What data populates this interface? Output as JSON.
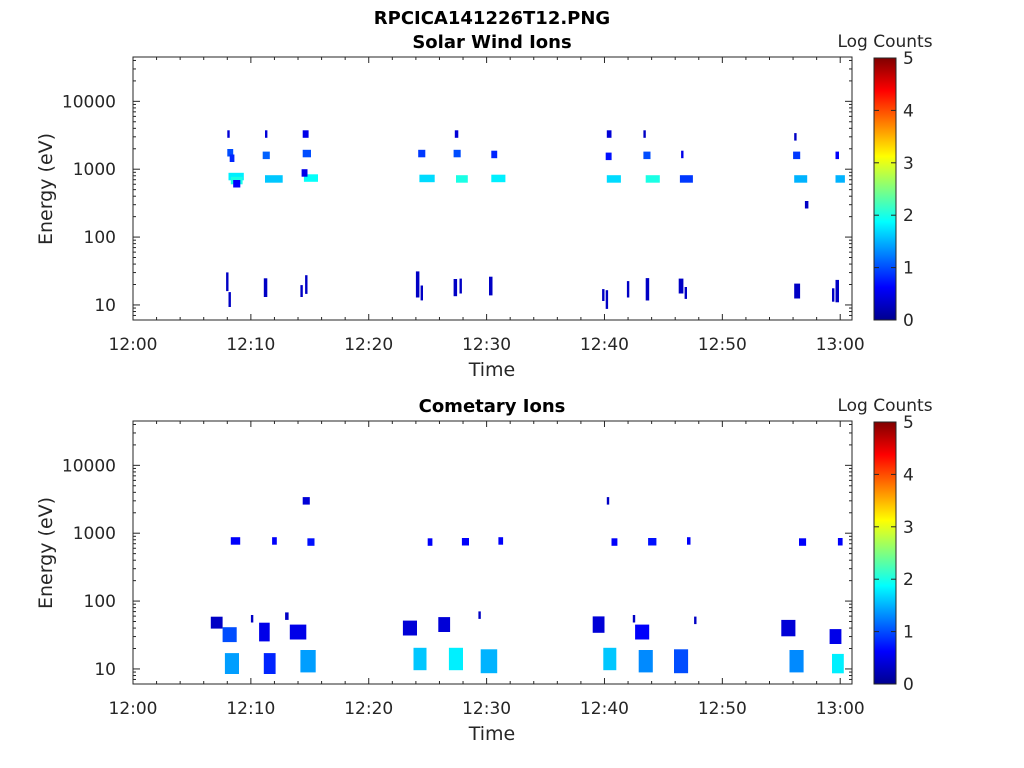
{
  "figure_title": "RPCICA141226T12.PNG",
  "colorbar_ticks": [
    "0",
    "1",
    "2",
    "3",
    "4",
    "5"
  ],
  "chart_data": [
    {
      "type": "heatmap",
      "title": "Solar Wind Ions",
      "xlabel": "Time",
      "ylabel": "Energy (eV)",
      "colorbar_label": "Log Counts",
      "colorbar_range": [
        0,
        5
      ],
      "x_ticks": [
        "12:00",
        "12:10",
        "12:20",
        "12:30",
        "12:40",
        "12:50",
        "13:00"
      ],
      "x_range_minutes": [
        0,
        61
      ],
      "y_scale": "log",
      "y_ticks": [
        "10",
        "100",
        "1000",
        "10000"
      ],
      "y_range": [
        6,
        45000
      ],
      "grid": false,
      "cells": [
        {
          "t": 8.0,
          "dt": 0.2,
          "e": 3300,
          "v": 0.4
        },
        {
          "t": 8.0,
          "dt": 0.5,
          "e": 1750,
          "v": 1.0
        },
        {
          "t": 8.2,
          "dt": 0.4,
          "e": 1450,
          "v": 0.8
        },
        {
          "t": 8.1,
          "dt": 1.3,
          "e": 780,
          "v": 1.8
        },
        {
          "t": 8.3,
          "dt": 1.0,
          "e": 680,
          "v": 2.0
        },
        {
          "t": 8.5,
          "dt": 0.6,
          "e": 610,
          "v": 0.6
        },
        {
          "t": 11.2,
          "dt": 0.2,
          "e": 3300,
          "v": 0.4
        },
        {
          "t": 11.0,
          "dt": 0.6,
          "e": 1600,
          "v": 1.1
        },
        {
          "t": 11.2,
          "dt": 1.5,
          "e": 720,
          "v": 1.6
        },
        {
          "t": 14.4,
          "dt": 0.5,
          "e": 3300,
          "v": 0.5
        },
        {
          "t": 14.4,
          "dt": 0.7,
          "e": 1700,
          "v": 1.0
        },
        {
          "t": 14.5,
          "dt": 1.2,
          "e": 740,
          "v": 1.9
        },
        {
          "t": 14.3,
          "dt": 0.5,
          "e": 880,
          "v": 0.5
        },
        {
          "t": 24.2,
          "dt": 0.6,
          "e": 1700,
          "v": 0.9
        },
        {
          "t": 24.3,
          "dt": 1.3,
          "e": 730,
          "v": 1.7
        },
        {
          "t": 27.3,
          "dt": 0.3,
          "e": 3300,
          "v": 0.4
        },
        {
          "t": 27.2,
          "dt": 0.6,
          "e": 1700,
          "v": 1.0
        },
        {
          "t": 27.4,
          "dt": 1.0,
          "e": 720,
          "v": 2.0
        },
        {
          "t": 30.4,
          "dt": 0.5,
          "e": 1650,
          "v": 0.8
        },
        {
          "t": 30.4,
          "dt": 1.2,
          "e": 730,
          "v": 1.8
        },
        {
          "t": 40.2,
          "dt": 0.4,
          "e": 3300,
          "v": 0.4
        },
        {
          "t": 40.1,
          "dt": 0.5,
          "e": 1550,
          "v": 0.7
        },
        {
          "t": 40.2,
          "dt": 1.2,
          "e": 720,
          "v": 1.7
        },
        {
          "t": 43.3,
          "dt": 0.2,
          "e": 3300,
          "v": 0.3
        },
        {
          "t": 43.3,
          "dt": 0.6,
          "e": 1600,
          "v": 1.0
        },
        {
          "t": 43.5,
          "dt": 1.2,
          "e": 720,
          "v": 2.0
        },
        {
          "t": 46.5,
          "dt": 0.2,
          "e": 1650,
          "v": 0.5
        },
        {
          "t": 46.4,
          "dt": 1.1,
          "e": 720,
          "v": 0.9
        },
        {
          "t": 56.1,
          "dt": 0.2,
          "e": 3000,
          "v": 0.3
        },
        {
          "t": 56.0,
          "dt": 0.6,
          "e": 1600,
          "v": 0.9
        },
        {
          "t": 56.1,
          "dt": 1.1,
          "e": 720,
          "v": 1.5
        },
        {
          "t": 57.0,
          "dt": 0.3,
          "e": 300,
          "v": 0.3
        },
        {
          "t": 59.6,
          "dt": 0.3,
          "e": 1600,
          "v": 0.6
        },
        {
          "t": 59.6,
          "dt": 0.8,
          "e": 720,
          "v": 1.5
        },
        {
          "t": 7.9,
          "dt": 0.2,
          "e": 22,
          "v": 0.3,
          "span": 2.5
        },
        {
          "t": 8.1,
          "dt": 0.2,
          "e": 12,
          "v": 0.3,
          "span": 2.0
        },
        {
          "t": 11.1,
          "dt": 0.3,
          "e": 18,
          "v": 0.3,
          "span": 2.5
        },
        {
          "t": 14.2,
          "dt": 0.2,
          "e": 16,
          "v": 0.3,
          "span": 1.6
        },
        {
          "t": 14.6,
          "dt": 0.2,
          "e": 20,
          "v": 0.3,
          "span": 2.5
        },
        {
          "t": 24.0,
          "dt": 0.3,
          "e": 20,
          "v": 0.3,
          "span": 3.5
        },
        {
          "t": 24.4,
          "dt": 0.2,
          "e": 15,
          "v": 0.3,
          "span": 2.0
        },
        {
          "t": 27.2,
          "dt": 0.3,
          "e": 18,
          "v": 0.3,
          "span": 2.3
        },
        {
          "t": 27.7,
          "dt": 0.2,
          "e": 19,
          "v": 0.3,
          "span": 2.0
        },
        {
          "t": 30.2,
          "dt": 0.3,
          "e": 19,
          "v": 0.3,
          "span": 2.5
        },
        {
          "t": 39.8,
          "dt": 0.2,
          "e": 14,
          "v": 0.3,
          "span": 1.6
        },
        {
          "t": 40.1,
          "dt": 0.2,
          "e": 12,
          "v": 0.3,
          "span": 2.5
        },
        {
          "t": 41.9,
          "dt": 0.2,
          "e": 17,
          "v": 0.3,
          "span": 2.2
        },
        {
          "t": 43.5,
          "dt": 0.3,
          "e": 17,
          "v": 0.3,
          "span": 3.0
        },
        {
          "t": 46.3,
          "dt": 0.4,
          "e": 19,
          "v": 0.3,
          "span": 2.0
        },
        {
          "t": 46.8,
          "dt": 0.2,
          "e": 15,
          "v": 0.3,
          "span": 1.6
        },
        {
          "t": 56.1,
          "dt": 0.5,
          "e": 16,
          "v": 0.3,
          "span": 2.0
        },
        {
          "t": 59.3,
          "dt": 0.2,
          "e": 14,
          "v": 0.3,
          "span": 1.8
        },
        {
          "t": 59.6,
          "dt": 0.3,
          "e": 16,
          "v": 0.3,
          "span": 3.0
        }
      ]
    },
    {
      "type": "heatmap",
      "title": "Cometary Ions",
      "xlabel": "Time",
      "ylabel": "Energy (eV)",
      "colorbar_label": "Log Counts",
      "colorbar_range": [
        0,
        5
      ],
      "x_ticks": [
        "12:00",
        "12:10",
        "12:20",
        "12:30",
        "12:40",
        "12:50",
        "13:00"
      ],
      "x_range_minutes": [
        0,
        61
      ],
      "y_scale": "log",
      "y_ticks": [
        "10",
        "100",
        "1000",
        "10000"
      ],
      "y_range": [
        6,
        45000
      ],
      "grid": false,
      "cells": [
        {
          "t": 14.4,
          "dt": 0.6,
          "e": 3000,
          "v": 0.4
        },
        {
          "t": 40.2,
          "dt": 0.2,
          "e": 3000,
          "v": 0.3
        },
        {
          "t": 8.3,
          "dt": 0.8,
          "e": 770,
          "v": 0.6
        },
        {
          "t": 11.8,
          "dt": 0.4,
          "e": 770,
          "v": 0.6
        },
        {
          "t": 14.8,
          "dt": 0.6,
          "e": 740,
          "v": 0.7
        },
        {
          "t": 25.0,
          "dt": 0.4,
          "e": 740,
          "v": 0.6
        },
        {
          "t": 27.9,
          "dt": 0.6,
          "e": 750,
          "v": 0.6
        },
        {
          "t": 31.0,
          "dt": 0.4,
          "e": 770,
          "v": 0.6
        },
        {
          "t": 40.6,
          "dt": 0.5,
          "e": 740,
          "v": 0.6
        },
        {
          "t": 43.7,
          "dt": 0.7,
          "e": 750,
          "v": 0.7
        },
        {
          "t": 47.0,
          "dt": 0.3,
          "e": 770,
          "v": 0.6
        },
        {
          "t": 56.5,
          "dt": 0.6,
          "e": 740,
          "v": 0.6
        },
        {
          "t": 59.8,
          "dt": 0.4,
          "e": 750,
          "v": 0.6
        },
        {
          "t": 10.0,
          "dt": 0.2,
          "e": 55,
          "v": 0.3
        },
        {
          "t": 12.9,
          "dt": 0.3,
          "e": 60,
          "v": 0.3
        },
        {
          "t": 29.3,
          "dt": 0.2,
          "e": 62,
          "v": 0.3
        },
        {
          "t": 42.4,
          "dt": 0.2,
          "e": 55,
          "v": 0.3
        },
        {
          "t": 47.6,
          "dt": 0.2,
          "e": 52,
          "v": 0.3
        },
        {
          "t": 6.6,
          "dt": 1.0,
          "e": 48,
          "v": 0.3,
          "span": 1.6
        },
        {
          "t": 7.6,
          "dt": 1.2,
          "e": 32,
          "v": 1.0,
          "span": 2.0
        },
        {
          "t": 7.8,
          "dt": 1.2,
          "e": 12,
          "v": 1.4,
          "span": 2.8
        },
        {
          "t": 10.7,
          "dt": 0.9,
          "e": 35,
          "v": 0.5,
          "span": 2.5
        },
        {
          "t": 11.1,
          "dt": 1.0,
          "e": 12,
          "v": 0.8,
          "span": 2.8
        },
        {
          "t": 13.3,
          "dt": 1.4,
          "e": 35,
          "v": 0.5,
          "span": 2.0
        },
        {
          "t": 14.2,
          "dt": 1.3,
          "e": 13,
          "v": 1.4,
          "span": 3.0
        },
        {
          "t": 22.9,
          "dt": 1.2,
          "e": 40,
          "v": 0.4,
          "span": 2.0
        },
        {
          "t": 23.8,
          "dt": 1.1,
          "e": 14,
          "v": 1.6,
          "span": 3.0
        },
        {
          "t": 25.9,
          "dt": 1.0,
          "e": 45,
          "v": 0.4,
          "span": 2.0
        },
        {
          "t": 26.8,
          "dt": 1.2,
          "e": 14,
          "v": 1.8,
          "span": 3.0
        },
        {
          "t": 29.5,
          "dt": 1.4,
          "e": 13,
          "v": 1.5,
          "span": 3.2
        },
        {
          "t": 39.0,
          "dt": 1.0,
          "e": 45,
          "v": 0.4,
          "span": 2.2
        },
        {
          "t": 39.9,
          "dt": 1.1,
          "e": 14,
          "v": 1.6,
          "span": 3.0
        },
        {
          "t": 42.6,
          "dt": 1.2,
          "e": 35,
          "v": 0.6,
          "span": 2.0
        },
        {
          "t": 42.9,
          "dt": 1.2,
          "e": 13,
          "v": 1.3,
          "span": 3.0
        },
        {
          "t": 45.9,
          "dt": 1.2,
          "e": 13,
          "v": 1.0,
          "span": 3.2
        },
        {
          "t": 55.0,
          "dt": 1.2,
          "e": 40,
          "v": 0.4,
          "span": 2.2
        },
        {
          "t": 55.7,
          "dt": 1.2,
          "e": 13,
          "v": 1.3,
          "span": 3.0
        },
        {
          "t": 59.1,
          "dt": 1.0,
          "e": 30,
          "v": 0.5,
          "span": 2.0
        },
        {
          "t": 59.3,
          "dt": 1.0,
          "e": 12,
          "v": 1.8,
          "span": 2.6
        }
      ]
    }
  ]
}
